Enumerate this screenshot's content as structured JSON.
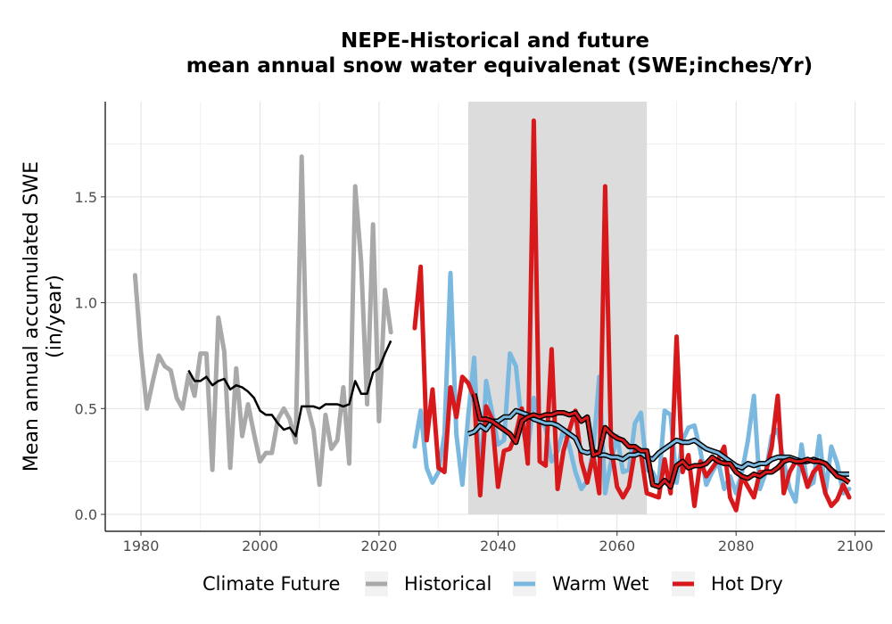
{
  "chart_data": {
    "type": "line",
    "title_lines": [
      "NEPE-Historical and future",
      "mean annual snow water equivalenat (SWE;inches/Yr)"
    ],
    "xlabel": "",
    "ylabel_lines": [
      "Mean annual accumulated SWE",
      "(in/year)"
    ],
    "xlim": [
      1974,
      2105
    ],
    "ylim": [
      -0.08,
      1.95
    ],
    "x_ticks": [
      1980,
      2000,
      2020,
      2040,
      2060,
      2080,
      2100
    ],
    "y_ticks": [
      0.0,
      0.5,
      1.0,
      1.5
    ],
    "y_tick_labels": [
      "0.0",
      "0.5",
      "1.0",
      "1.5"
    ],
    "grid": true,
    "highlight_band": {
      "x0": 2035,
      "x1": 2065,
      "color": "#dcdcdc"
    },
    "legend": {
      "title": "Climate Future",
      "position": "bottom",
      "entries": [
        {
          "label": "Historical",
          "color": "#a9a9a9"
        },
        {
          "label": "Warm Wet",
          "color": "#7bb8e0"
        },
        {
          "label": "Hot Dry",
          "color": "#d7191c"
        }
      ]
    },
    "series": [
      {
        "name": "Historical",
        "color": "#a9a9a9",
        "x": [
          1979,
          1980,
          1981,
          1982,
          1983,
          1984,
          1985,
          1986,
          1987,
          1988,
          1989,
          1990,
          1991,
          1992,
          1993,
          1994,
          1995,
          1996,
          1997,
          1998,
          1999,
          2000,
          2001,
          2002,
          2003,
          2004,
          2005,
          2006,
          2007,
          2008,
          2009,
          2010,
          2011,
          2012,
          2013,
          2014,
          2015,
          2016,
          2017,
          2018,
          2019,
          2020,
          2021,
          2022
        ],
        "values": [
          1.13,
          0.77,
          0.5,
          0.63,
          0.75,
          0.7,
          0.68,
          0.55,
          0.5,
          0.66,
          0.56,
          0.76,
          0.76,
          0.21,
          0.93,
          0.77,
          0.22,
          0.69,
          0.37,
          0.52,
          0.38,
          0.25,
          0.29,
          0.29,
          0.45,
          0.5,
          0.45,
          0.34,
          1.69,
          0.51,
          0.4,
          0.14,
          0.47,
          0.31,
          0.35,
          0.6,
          0.24,
          1.55,
          1.19,
          0.52,
          1.37,
          0.44,
          1.06,
          0.86
        ],
        "smooth_x": [
          1988,
          1989,
          1990,
          1991,
          1992,
          1993,
          1994,
          1995,
          1996,
          1997,
          1998,
          1999,
          2000,
          2001,
          2002,
          2003,
          2004,
          2005,
          2006,
          2007,
          2008,
          2009,
          2010,
          2011,
          2012,
          2013,
          2014,
          2015,
          2016,
          2017,
          2018,
          2019,
          2020,
          2021,
          2022
        ],
        "smooth": [
          0.68,
          0.63,
          0.63,
          0.65,
          0.61,
          0.63,
          0.64,
          0.59,
          0.61,
          0.6,
          0.58,
          0.55,
          0.49,
          0.47,
          0.47,
          0.43,
          0.4,
          0.41,
          0.37,
          0.51,
          0.51,
          0.51,
          0.5,
          0.52,
          0.52,
          0.52,
          0.51,
          0.52,
          0.63,
          0.57,
          0.57,
          0.67,
          0.69,
          0.76,
          0.82
        ]
      },
      {
        "name": "Warm Wet",
        "color": "#7bb8e0",
        "x": [
          2026,
          2027,
          2028,
          2029,
          2030,
          2031,
          2032,
          2033,
          2034,
          2035,
          2036,
          2037,
          2038,
          2039,
          2040,
          2041,
          2042,
          2043,
          2044,
          2045,
          2046,
          2047,
          2048,
          2049,
          2050,
          2051,
          2052,
          2053,
          2054,
          2055,
          2056,
          2057,
          2058,
          2059,
          2060,
          2061,
          2062,
          2063,
          2064,
          2065,
          2066,
          2067,
          2068,
          2069,
          2070,
          2071,
          2072,
          2073,
          2074,
          2075,
          2076,
          2077,
          2078,
          2079,
          2080,
          2081,
          2082,
          2083,
          2084,
          2085,
          2086,
          2087,
          2088,
          2089,
          2090,
          2091,
          2092,
          2093,
          2094,
          2095,
          2096,
          2097,
          2098,
          2099
        ],
        "values": [
          0.32,
          0.49,
          0.22,
          0.15,
          0.2,
          0.38,
          1.14,
          0.38,
          0.14,
          0.47,
          0.74,
          0.13,
          0.63,
          0.48,
          0.33,
          0.35,
          0.76,
          0.7,
          0.42,
          0.3,
          0.55,
          0.45,
          0.41,
          0.25,
          0.3,
          0.4,
          0.32,
          0.2,
          0.12,
          0.16,
          0.3,
          0.65,
          0.1,
          0.25,
          0.37,
          0.2,
          0.21,
          0.43,
          0.48,
          0.21,
          0.2,
          0.14,
          0.49,
          0.47,
          0.15,
          0.35,
          0.41,
          0.42,
          0.3,
          0.14,
          0.2,
          0.25,
          0.12,
          0.18,
          0.1,
          0.2,
          0.35,
          0.56,
          0.12,
          0.2,
          0.37,
          0.4,
          0.25,
          0.12,
          0.06,
          0.33,
          0.13,
          0.15,
          0.37,
          0.1,
          0.32,
          0.24,
          0.1,
          0.12
        ],
        "smooth_x": [
          2035,
          2036,
          2037,
          2038,
          2039,
          2040,
          2041,
          2042,
          2043,
          2044,
          2045,
          2046,
          2047,
          2048,
          2049,
          2050,
          2051,
          2052,
          2053,
          2054,
          2055,
          2056,
          2057,
          2058,
          2059,
          2060,
          2061,
          2062,
          2063,
          2064,
          2065,
          2066,
          2067,
          2068,
          2069,
          2070,
          2071,
          2072,
          2073,
          2074,
          2075,
          2076,
          2077,
          2078,
          2079,
          2080,
          2081,
          2082,
          2083,
          2084,
          2085,
          2086,
          2087,
          2088,
          2089,
          2090,
          2091,
          2092,
          2093,
          2094,
          2095,
          2096,
          2097,
          2098,
          2099
        ],
        "smooth": [
          0.38,
          0.39,
          0.42,
          0.4,
          0.44,
          0.44,
          0.46,
          0.46,
          0.49,
          0.48,
          0.47,
          0.45,
          0.44,
          0.43,
          0.43,
          0.42,
          0.4,
          0.38,
          0.36,
          0.3,
          0.29,
          0.3,
          0.28,
          0.28,
          0.27,
          0.27,
          0.26,
          0.28,
          0.28,
          0.29,
          0.27,
          0.26,
          0.29,
          0.31,
          0.33,
          0.35,
          0.34,
          0.34,
          0.35,
          0.33,
          0.31,
          0.3,
          0.29,
          0.27,
          0.25,
          0.23,
          0.22,
          0.24,
          0.23,
          0.24,
          0.24,
          0.26,
          0.27,
          0.27,
          0.27,
          0.26,
          0.25,
          0.25,
          0.26,
          0.25,
          0.24,
          0.21,
          0.19,
          0.19,
          0.19
        ]
      },
      {
        "name": "Hot Dry",
        "color": "#d7191c",
        "x": [
          2026,
          2027,
          2028,
          2029,
          2030,
          2031,
          2032,
          2033,
          2034,
          2035,
          2036,
          2037,
          2038,
          2039,
          2040,
          2041,
          2042,
          2043,
          2044,
          2045,
          2046,
          2047,
          2048,
          2049,
          2050,
          2051,
          2052,
          2053,
          2054,
          2055,
          2056,
          2057,
          2058,
          2059,
          2060,
          2061,
          2062,
          2063,
          2064,
          2065,
          2066,
          2067,
          2068,
          2069,
          2070,
          2071,
          2072,
          2073,
          2074,
          2075,
          2076,
          2077,
          2078,
          2079,
          2080,
          2081,
          2082,
          2083,
          2084,
          2085,
          2086,
          2087,
          2088,
          2089,
          2090,
          2091,
          2092,
          2093,
          2094,
          2095,
          2096,
          2097,
          2098,
          2099
        ],
        "values": [
          0.88,
          1.17,
          0.35,
          0.59,
          0.22,
          0.2,
          0.6,
          0.46,
          0.65,
          0.62,
          0.55,
          0.09,
          0.51,
          0.45,
          0.13,
          0.3,
          0.31,
          0.38,
          0.5,
          0.24,
          1.86,
          0.25,
          0.23,
          0.78,
          0.12,
          0.3,
          0.4,
          0.49,
          0.25,
          0.15,
          0.28,
          0.1,
          1.55,
          0.32,
          0.13,
          0.08,
          0.13,
          0.3,
          0.29,
          0.1,
          0.09,
          0.08,
          0.26,
          0.1,
          0.84,
          0.2,
          0.28,
          0.04,
          0.25,
          0.18,
          0.22,
          0.26,
          0.32,
          0.08,
          0.02,
          0.18,
          0.13,
          0.08,
          0.2,
          0.2,
          0.32,
          0.56,
          0.1,
          0.2,
          0.25,
          0.23,
          0.13,
          0.2,
          0.23,
          0.1,
          0.04,
          0.07,
          0.14,
          0.08
        ],
        "smooth_x": [
          2036,
          2037,
          2038,
          2039,
          2040,
          2041,
          2042,
          2043,
          2044,
          2045,
          2046,
          2047,
          2048,
          2049,
          2050,
          2051,
          2052,
          2053,
          2054,
          2055,
          2056,
          2057,
          2058,
          2059,
          2060,
          2061,
          2062,
          2063,
          2064,
          2065,
          2066,
          2067,
          2068,
          2069,
          2070,
          2071,
          2072,
          2073,
          2074,
          2075,
          2076,
          2077,
          2078,
          2079,
          2080,
          2081,
          2082,
          2083,
          2084,
          2085,
          2086,
          2087,
          2088,
          2089,
          2090,
          2091,
          2092,
          2093,
          2094,
          2095,
          2096,
          2097,
          2098,
          2099
        ],
        "smooth": [
          0.57,
          0.45,
          0.45,
          0.44,
          0.42,
          0.4,
          0.38,
          0.34,
          0.44,
          0.46,
          0.47,
          0.46,
          0.47,
          0.47,
          0.48,
          0.48,
          0.47,
          0.48,
          0.44,
          0.46,
          0.28,
          0.29,
          0.41,
          0.38,
          0.36,
          0.35,
          0.32,
          0.32,
          0.3,
          0.3,
          0.14,
          0.13,
          0.16,
          0.13,
          0.23,
          0.25,
          0.22,
          0.23,
          0.23,
          0.24,
          0.27,
          0.25,
          0.24,
          0.24,
          0.2,
          0.18,
          0.17,
          0.19,
          0.18,
          0.2,
          0.2,
          0.22,
          0.25,
          0.26,
          0.25,
          0.25,
          0.26,
          0.25,
          0.25,
          0.24,
          0.21,
          0.18,
          0.17,
          0.15
        ]
      }
    ]
  }
}
